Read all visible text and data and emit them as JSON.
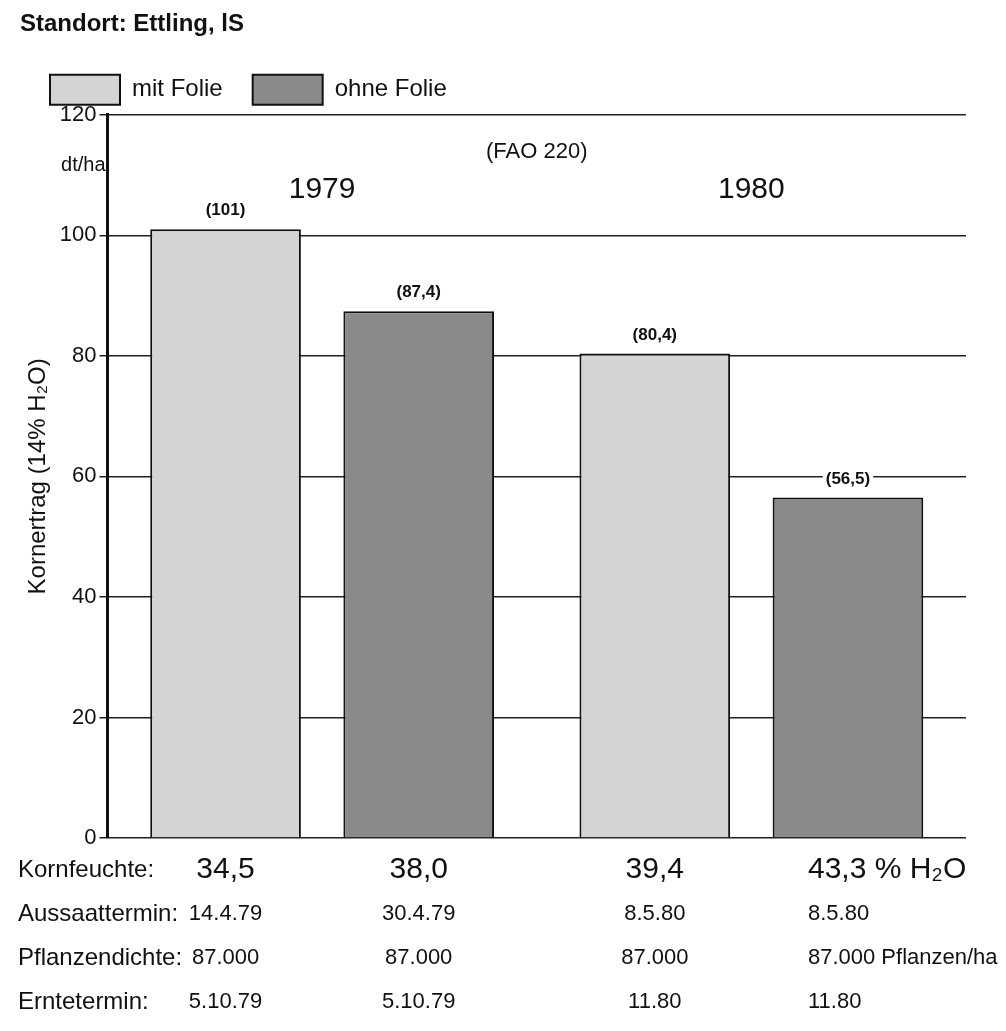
{
  "chart_data": {
    "type": "bar",
    "title": "Standort: Ettling, lS",
    "ylabel": "Kornertrag (14% H₂O)",
    "categories": [
      "1979",
      "1980"
    ],
    "series": [
      {
        "name": "mit Folie",
        "color": "#d4d4d4",
        "values": [
          101,
          80.4
        ],
        "value_labels": [
          "(101)",
          "(80,4)"
        ]
      },
      {
        "name": "ohne Folie",
        "color": "#8a8a8a",
        "values": [
          87.4,
          56.5
        ],
        "value_labels": [
          "(87,4)",
          "(56,5)"
        ]
      }
    ],
    "ylim": [
      0,
      120
    ],
    "yticks": [
      0,
      20,
      40,
      60,
      80,
      100,
      120
    ],
    "grid": "y",
    "legend": "top left",
    "annotations": [
      "dt/ha",
      "(FAO 220)",
      "Kornfeuchte:",
      "34,5",
      "38,0",
      "39,4",
      "43,3 % H₂O",
      "Aussaattermin:",
      "14.4.79",
      "30.4.79",
      "8.5.80",
      "8.5.80",
      "Pflanzendichte:",
      "87.000",
      "87.000",
      "87.000",
      "87.000 Pflanzen/ha",
      "Erntetermin:",
      "5.10.79",
      "5.10.79",
      "11.80",
      "11.80"
    ]
  }
}
